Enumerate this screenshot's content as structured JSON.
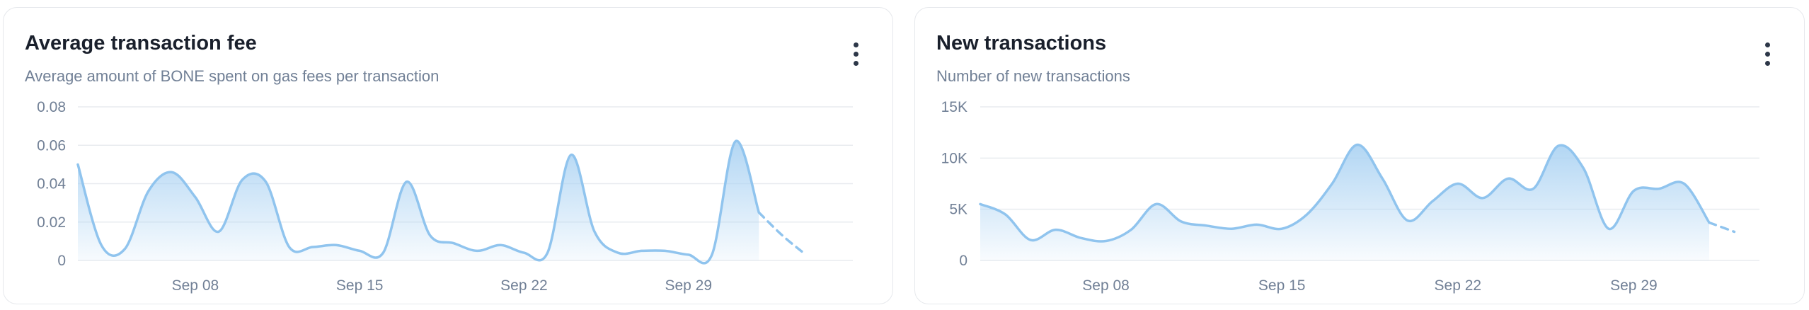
{
  "cards": [
    {
      "title": "Average transaction fee",
      "subtitle": "Average amount of BONE spent on gas fees per transaction",
      "menu_icon": "vertical-dots-icon"
    },
    {
      "title": "New transactions",
      "subtitle": "Number of new transactions",
      "menu_icon": "vertical-dots-icon"
    }
  ],
  "colors": {
    "line": "#90c4ee",
    "fill_top": "#aed4f3",
    "grid": "#e8ebef",
    "label": "#718096"
  },
  "chart_data": [
    {
      "type": "area",
      "title": "Average transaction fee",
      "subtitle": "Average amount of BONE spent on gas fees per transaction",
      "x": [
        "2024-09-03",
        "2024-09-04",
        "2024-09-05",
        "2024-09-06",
        "2024-09-07",
        "2024-09-08",
        "2024-09-09",
        "2024-09-10",
        "2024-09-11",
        "2024-09-12",
        "2024-09-13",
        "2024-09-14",
        "2024-09-15",
        "2024-09-16",
        "2024-09-17",
        "2024-09-18",
        "2024-09-19",
        "2024-09-20",
        "2024-09-21",
        "2024-09-22",
        "2024-09-23",
        "2024-09-24",
        "2024-09-25",
        "2024-09-26",
        "2024-09-27",
        "2024-09-28",
        "2024-09-29",
        "2024-09-30",
        "2024-10-01",
        "2024-10-02",
        "2024-10-03",
        "2024-10-04",
        "2024-10-05",
        "2024-10-06"
      ],
      "values": [
        0.05,
        0.008,
        0.006,
        0.036,
        0.046,
        0.033,
        0.015,
        0.042,
        0.041,
        0.007,
        0.007,
        0.008,
        0.005,
        0.004,
        0.041,
        0.013,
        0.009,
        0.005,
        0.008,
        0.004,
        0.004,
        0.055,
        0.015,
        0.004,
        0.005,
        0.005,
        0.003,
        0.003,
        0.062,
        0.025,
        0.013,
        0.003,
        null,
        null
      ],
      "dashed_from_index": 29,
      "xlabel": "",
      "ylabel": "",
      "x_ticks": [
        "Sep 08",
        "Sep 15",
        "Sep 22",
        "Sep 29"
      ],
      "x_tick_dates": [
        "2024-09-08",
        "2024-09-15",
        "2024-09-22",
        "2024-09-29"
      ],
      "y_ticks": [
        "0",
        "0.02",
        "0.04",
        "0.06",
        "0.08"
      ],
      "ylim": [
        0,
        0.08
      ],
      "grid": true,
      "legend": "none"
    },
    {
      "type": "area",
      "title": "New transactions",
      "subtitle": "Number of new transactions",
      "x": [
        "2024-09-03",
        "2024-09-04",
        "2024-09-05",
        "2024-09-06",
        "2024-09-07",
        "2024-09-08",
        "2024-09-09",
        "2024-09-10",
        "2024-09-11",
        "2024-09-12",
        "2024-09-13",
        "2024-09-14",
        "2024-09-15",
        "2024-09-16",
        "2024-09-17",
        "2024-09-18",
        "2024-09-19",
        "2024-09-20",
        "2024-09-21",
        "2024-09-22",
        "2024-09-23",
        "2024-09-24",
        "2024-09-25",
        "2024-09-26",
        "2024-09-27",
        "2024-09-28",
        "2024-09-29",
        "2024-09-30",
        "2024-10-01",
        "2024-10-02",
        "2024-10-03",
        "2024-10-04"
      ],
      "values": [
        5500,
        4500,
        2000,
        3000,
        2200,
        1900,
        3000,
        5500,
        3800,
        3400,
        3100,
        3500,
        3100,
        4500,
        7500,
        11300,
        8000,
        3900,
        5800,
        7500,
        6100,
        8000,
        7000,
        11200,
        9000,
        3100,
        6800,
        7000,
        7500,
        3700,
        2800,
        null
      ],
      "dashed_from_index": 29,
      "xlabel": "",
      "ylabel": "",
      "x_ticks": [
        "Sep 08",
        "Sep 15",
        "Sep 22",
        "Sep 29"
      ],
      "x_tick_dates": [
        "2024-09-08",
        "2024-09-15",
        "2024-09-22",
        "2024-09-29"
      ],
      "y_ticks": [
        "0",
        "5K",
        "10K",
        "15K"
      ],
      "ylim": [
        0,
        15000
      ],
      "grid": true,
      "legend": "none"
    }
  ]
}
